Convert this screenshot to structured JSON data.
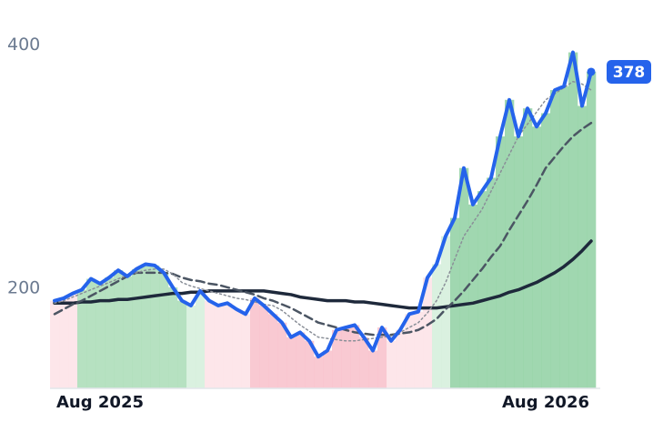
{
  "chart_data": {
    "type": "line",
    "categories": [
      null,
      null,
      null,
      null,
      null,
      "Aug 2025",
      null,
      null,
      null,
      null,
      null,
      null,
      null,
      null,
      null,
      null,
      null,
      null,
      null,
      null,
      null,
      null,
      null,
      null,
      null,
      null,
      null,
      null,
      null,
      null,
      null,
      null,
      null,
      null,
      null,
      null,
      null,
      null,
      null,
      null,
      null,
      null,
      null,
      null,
      null,
      null,
      null,
      null,
      null,
      null,
      null,
      null,
      null,
      null,
      "Aug 2026",
      null,
      null,
      null,
      null,
      null
    ],
    "series": [
      {
        "color": "#2563eb",
        "style": "solid",
        "width": 4,
        "values": [
          190,
          192,
          196,
          199,
          208,
          204,
          209,
          215,
          210,
          216,
          220,
          219,
          213,
          201,
          190,
          186,
          198,
          190,
          186,
          188,
          183,
          179,
          192,
          186,
          179,
          172,
          160,
          164,
          157,
          144,
          149,
          166,
          168,
          170,
          160,
          149,
          168,
          157,
          166,
          179,
          181,
          209,
          220,
          243,
          258,
          299,
          269,
          280,
          291,
          325,
          355,
          325,
          348,
          333,
          344,
          363,
          366,
          394,
          350,
          378
        ]
      },
      {
        "color": "#8a8f98",
        "style": "dotted",
        "width": 1.5,
        "values": [
          188,
          190,
          193,
          196,
          199,
          202,
          205,
          208,
          211,
          213,
          215,
          216,
          216,
          212,
          205,
          202,
          200,
          198,
          196,
          194,
          192,
          191,
          189,
          187,
          186,
          182,
          176,
          170,
          165,
          160,
          159,
          158,
          157,
          157,
          158,
          159,
          160,
          161,
          164,
          168,
          172,
          180,
          190,
          205,
          224,
          243,
          254,
          265,
          280,
          295,
          310,
          325,
          335,
          345,
          355,
          360,
          365,
          370,
          368,
          363
        ]
      },
      {
        "color": "#4b5563",
        "style": "dashed",
        "width": 2.5,
        "values": [
          179,
          183,
          187,
          190,
          194,
          198,
          202,
          206,
          210,
          213,
          213,
          213,
          213,
          212,
          209,
          207,
          206,
          204,
          203,
          201,
          199,
          197,
          195,
          192,
          190,
          187,
          184,
          180,
          176,
          172,
          170,
          168,
          166,
          164,
          163,
          162,
          162,
          162,
          163,
          164,
          166,
          170,
          175,
          183,
          190,
          198,
          207,
          216,
          226,
          235,
          248,
          260,
          272,
          285,
          299,
          308,
          317,
          325,
          331,
          336
        ]
      },
      {
        "color": "#1e293b",
        "style": "solid",
        "width": 3.5,
        "values": [
          188,
          188,
          188,
          189,
          189,
          190,
          190,
          191,
          191,
          192,
          193,
          194,
          195,
          196,
          196,
          197,
          197,
          198,
          198,
          198,
          198,
          198,
          198,
          198,
          197,
          196,
          195,
          193,
          192,
          191,
          190,
          190,
          190,
          189,
          189,
          188,
          187,
          186,
          185,
          184,
          184,
          184,
          184,
          185,
          186,
          187,
          188,
          190,
          192,
          194,
          197,
          199,
          202,
          205,
          209,
          213,
          218,
          224,
          231,
          239
        ]
      }
    ],
    "area_colors": [
      "#fde2e6",
      "#fde2e6",
      "#fde2e6",
      "#a9dcb6",
      "#a9dcb6",
      "#a9dcb6",
      "#a9dcb6",
      "#a9dcb6",
      "#a9dcb6",
      "#a9dcb6",
      "#a9dcb6",
      "#a9dcb6",
      "#a9dcb6",
      "#a9dcb6",
      "#a9dcb6",
      "#d4eedb",
      "#d4eedb",
      "#fde2e6",
      "#fde2e6",
      "#fde2e6",
      "#fde2e6",
      "#fde2e6",
      "#f8c0ca",
      "#f8c0ca",
      "#f8c0ca",
      "#f8c0ca",
      "#f8c0ca",
      "#f8c0ca",
      "#f8c0ca",
      "#f8c0ca",
      "#f8c0ca",
      "#f8c0ca",
      "#f8c0ca",
      "#f8c0ca",
      "#f8c0ca",
      "#f8c0ca",
      "#f8c0ca",
      "#fde2e6",
      "#fde2e6",
      "#fde2e6",
      "#fde2e6",
      "#fde2e6",
      "#d4eedb",
      "#d4eedb",
      "#8fd0a2",
      "#8fd0a2",
      "#8fd0a2",
      "#8fd0a2",
      "#8fd0a2",
      "#8fd0a2",
      "#8fd0a2",
      "#8fd0a2",
      "#8fd0a2",
      "#8fd0a2",
      "#8fd0a2",
      "#8fd0a2",
      "#8fd0a2",
      "#8fd0a2",
      "#8fd0a2",
      "#8fd0a2"
    ],
    "ylim": [
      118,
      437
    ],
    "yticks": [
      200,
      400
    ],
    "grid": false
  }
}
